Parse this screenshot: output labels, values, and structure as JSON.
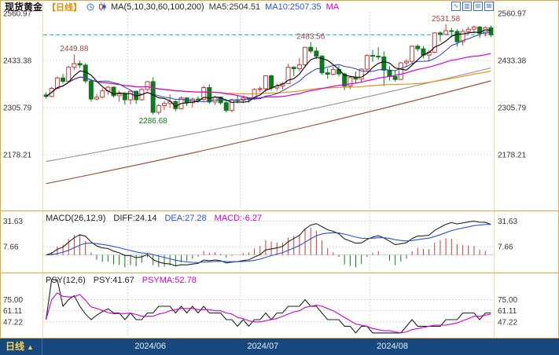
{
  "header": {
    "title": "现货黄金",
    "period_tag": "【日线】",
    "ma_settings": "MA(5,10,30,60,100,200)",
    "ma5_label": "MA5:2504.51",
    "ma10_label": "MA10:2507.35",
    "ma_more": "MA"
  },
  "toolbar": {
    "icons": [
      {
        "name": "line-chart",
        "glyph": "∿"
      },
      {
        "name": "candle-chart",
        "glyph": "▥"
      },
      {
        "name": "zoom",
        "glyph": "⊞"
      },
      {
        "name": "fullscreen",
        "glyph": "⊠"
      }
    ]
  },
  "price_axis": {
    "items": [
      {
        "text": "2560.97",
        "value": 2560.97
      },
      {
        "text": "2433.38",
        "value": 2433.38
      },
      {
        "text": "2305.79",
        "value": 2305.79
      },
      {
        "text": "2178.21",
        "value": 2178.21
      }
    ]
  },
  "macd_panel": {
    "header": "MACD(26,12,9)",
    "diff_label": "DIFF:24.14",
    "dea_label": "DEA:27.28",
    "macd_label": "MACD:-6.27",
    "axis": [
      {
        "text": "31.63",
        "value": 31.63
      },
      {
        "text": "7.66",
        "value": 7.66
      }
    ]
  },
  "psy_panel": {
    "header": "PSY(12,6)",
    "psy_label": "PSY:41.67",
    "psyma_label": "PSYMA:52.78",
    "axis": [
      {
        "text": "75.00",
        "value": 75.0
      },
      {
        "text": "61.11",
        "value": 61.11
      },
      {
        "text": "47.22",
        "value": 47.22
      }
    ]
  },
  "bottom_bar": {
    "tab_label": "日线",
    "tab_arrow": "▲"
  },
  "colors": {
    "up": "#c23b3b",
    "down": "#0e7a1e",
    "ma5": "#111111",
    "ma10": "#2a3fb8",
    "ma30": "#d400d4",
    "ma60": "#e39317",
    "ma100": "#999999",
    "ma200": "#9b4f3f",
    "diff_line": "#222222",
    "dea_line": "#2a52c8",
    "psy_line": "#222222",
    "psyma_line": "#cc00cc",
    "current_price_line": "#00b2b2",
    "annotation_high": "#a04545",
    "annotation_low": "#0e7a1e",
    "grid": "#d8d8d8",
    "axis_text": "#333333",
    "panel_border": "#dfa648"
  },
  "chart_data": {
    "type": "candlestick",
    "title": "现货黄金 日线",
    "price_axis_ticks": [
      2560.97,
      2433.38,
      2305.79,
      2178.21
    ],
    "current_price_line_value": 2503,
    "month_ticks": [
      {
        "label": "2024/06",
        "candle_index": 15
      },
      {
        "label": "2024/07",
        "candle_index": 35
      },
      {
        "label": "2024/08",
        "candle_index": 58
      }
    ],
    "annotations": [
      {
        "text": "2449.88",
        "candle_index": 5,
        "position": "above"
      },
      {
        "text": "2286.68",
        "candle_index": 19,
        "position": "below"
      },
      {
        "text": "2483.56",
        "candle_index": 47,
        "position": "above"
      },
      {
        "text": "2531.58",
        "candle_index": 71,
        "position": "above"
      }
    ],
    "ma_overlays": {
      "computed_periods": [
        5,
        10,
        30,
        60
      ],
      "ma100_endpoints": [
        2160,
        2413
      ],
      "ma200_endpoints": [
        2100,
        2378
      ]
    },
    "indicators": {
      "macd": {
        "params": [
          26,
          12,
          9
        ],
        "diff": 24.14,
        "dea": 27.28,
        "macd": -6.27
      },
      "psy": {
        "params": [
          12,
          6
        ],
        "psy": 41.67,
        "psyma": 52.78
      },
      "ma": {
        "ma5": 2504.51,
        "ma10": 2507.35
      }
    },
    "candles": [
      [
        2340,
        2347,
        2330,
        2336
      ],
      [
        2336,
        2362,
        2333,
        2358
      ],
      [
        2358,
        2390,
        2355,
        2386
      ],
      [
        2386,
        2397,
        2371,
        2377
      ],
      [
        2377,
        2419,
        2375,
        2415
      ],
      [
        2415,
        2449.9,
        2407,
        2425
      ],
      [
        2425,
        2433,
        2413,
        2421
      ],
      [
        2421,
        2426,
        2372,
        2378
      ],
      [
        2378,
        2383,
        2322,
        2329
      ],
      [
        2329,
        2343,
        2325,
        2334
      ],
      [
        2334,
        2358,
        2331,
        2351
      ],
      [
        2351,
        2364,
        2340,
        2361
      ],
      [
        2361,
        2363,
        2333,
        2338
      ],
      [
        2338,
        2352,
        2322,
        2343
      ],
      [
        2343,
        2348,
        2314,
        2327
      ],
      [
        2327,
        2354,
        2315,
        2350
      ],
      [
        2350,
        2352,
        2316,
        2327
      ],
      [
        2327,
        2358,
        2325,
        2355
      ],
      [
        2355,
        2378,
        2351,
        2376
      ],
      [
        2376,
        2388,
        2286.7,
        2293
      ],
      [
        2293,
        2316,
        2287,
        2311
      ],
      [
        2311,
        2323,
        2299,
        2317
      ],
      [
        2317,
        2341,
        2306,
        2322
      ],
      [
        2322,
        2326,
        2296,
        2303
      ],
      [
        2303,
        2336,
        2301,
        2332
      ],
      [
        2332,
        2334,
        2310,
        2319
      ],
      [
        2319,
        2333,
        2306,
        2329
      ],
      [
        2329,
        2336,
        2319,
        2328
      ],
      [
        2328,
        2365,
        2323,
        2360
      ],
      [
        2360,
        2369,
        2316,
        2321
      ],
      [
        2321,
        2338,
        2313,
        2334
      ],
      [
        2334,
        2336,
        2314,
        2319
      ],
      [
        2319,
        2323,
        2293,
        2298
      ],
      [
        2298,
        2330,
        2293,
        2327
      ],
      [
        2327,
        2339,
        2317,
        2326
      ],
      [
        2326,
        2339,
        2318,
        2332
      ],
      [
        2332,
        2334,
        2319,
        2329
      ],
      [
        2329,
        2358,
        2327,
        2355
      ],
      [
        2355,
        2363,
        2348,
        2357
      ],
      [
        2357,
        2393,
        2349,
        2392
      ],
      [
        2392,
        2395,
        2352,
        2359
      ],
      [
        2359,
        2371,
        2351,
        2364
      ],
      [
        2364,
        2375,
        2355,
        2371
      ],
      [
        2371,
        2424,
        2370,
        2415
      ],
      [
        2415,
        2418,
        2391,
        2411
      ],
      [
        2411,
        2440,
        2404,
        2422
      ],
      [
        2422,
        2470,
        2414,
        2469
      ],
      [
        2469,
        2483.6,
        2453,
        2459
      ],
      [
        2459,
        2469,
        2437,
        2445
      ],
      [
        2445,
        2448,
        2394,
        2400
      ],
      [
        2400,
        2412,
        2384,
        2396
      ],
      [
        2396,
        2417,
        2392,
        2409
      ],
      [
        2409,
        2419,
        2390,
        2397
      ],
      [
        2397,
        2400,
        2353,
        2364
      ],
      [
        2364,
        2390,
        2356,
        2387
      ],
      [
        2387,
        2403,
        2373,
        2383
      ],
      [
        2383,
        2412,
        2375,
        2410
      ],
      [
        2410,
        2450,
        2404,
        2447
      ],
      [
        2447,
        2462,
        2430,
        2445
      ],
      [
        2445,
        2469,
        2435,
        2443
      ],
      [
        2443,
        2458,
        2364,
        2407
      ],
      [
        2407,
        2418,
        2379,
        2390
      ],
      [
        2390,
        2407,
        2376,
        2382
      ],
      [
        2382,
        2429,
        2380,
        2427
      ],
      [
        2427,
        2437,
        2417,
        2431
      ],
      [
        2431,
        2474,
        2423,
        2472
      ],
      [
        2472,
        2477,
        2458,
        2465
      ],
      [
        2465,
        2472,
        2439,
        2448
      ],
      [
        2448,
        2462,
        2432,
        2456
      ],
      [
        2456,
        2510,
        2452,
        2508
      ],
      [
        2508,
        2512,
        2485,
        2504
      ],
      [
        2504,
        2531.6,
        2502,
        2514
      ],
      [
        2514,
        2522,
        2496,
        2512
      ],
      [
        2512,
        2518,
        2471,
        2484
      ],
      [
        2484,
        2518,
        2474,
        2512
      ],
      [
        2512,
        2525,
        2503,
        2518
      ],
      [
        2518,
        2528,
        2507,
        2524
      ],
      [
        2524,
        2527,
        2494,
        2507
      ],
      [
        2507,
        2526,
        2498,
        2522
      ],
      [
        2522,
        2528,
        2497,
        2503
      ]
    ]
  }
}
